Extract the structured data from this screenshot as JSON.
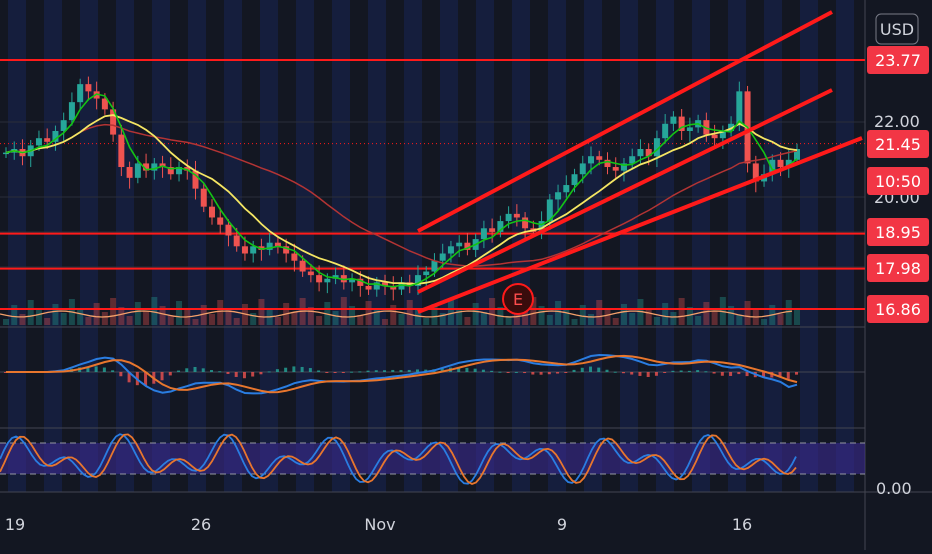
{
  "toolbar": {
    "currency_label": "USD"
  },
  "chart_data": {
    "type": "candlestick",
    "x_axis": {
      "tick_labels": [
        "19",
        "26",
        "Nov",
        "9",
        "16"
      ]
    },
    "price_axis": {
      "tick_labels": [
        "22.00",
        "20.00"
      ],
      "highlighted_levels": [
        {
          "label": "23.77",
          "color": "#f23645"
        },
        {
          "label": "21.45",
          "color": "#f23645"
        },
        {
          "label": "10:50",
          "color": "#f23645"
        },
        {
          "label": "18.95",
          "color": "#f23645"
        },
        {
          "label": "17.98",
          "color": "#f23645"
        },
        {
          "label": "16.86",
          "color": "#f23645"
        }
      ]
    },
    "horizontal_lines": [
      23.77,
      18.95,
      17.98,
      16.86
    ],
    "earnings_marker": "E",
    "lower_pane_tick": "0.00",
    "candles": {
      "start_close": 21.2,
      "closes": [
        21.2,
        21.3,
        21.1,
        21.4,
        21.6,
        21.5,
        21.8,
        22.1,
        22.6,
        23.1,
        22.9,
        22.7,
        22.4,
        21.7,
        20.8,
        20.5,
        20.9,
        20.7,
        20.9,
        20.8,
        20.6,
        20.8,
        20.7,
        20.2,
        19.7,
        19.4,
        19.2,
        18.9,
        18.6,
        18.4,
        18.6,
        18.5,
        18.7,
        18.6,
        18.4,
        18.2,
        17.9,
        17.8,
        17.6,
        17.7,
        17.8,
        17.6,
        17.7,
        17.5,
        17.4,
        17.6,
        17.5,
        17.4,
        17.6,
        17.5,
        17.8,
        17.9,
        18.2,
        18.4,
        18.6,
        18.7,
        18.5,
        18.8,
        19.1,
        19.0,
        19.3,
        19.5,
        19.4,
        19.1,
        19.0,
        19.3,
        19.9,
        20.1,
        20.3,
        20.6,
        20.9,
        21.1,
        21.0,
        20.8,
        20.7,
        20.9,
        21.1,
        21.3,
        21.1,
        21.6,
        22.0,
        22.2,
        21.8,
        21.9,
        22.1,
        21.7,
        21.6,
        21.8,
        22.0,
        22.9,
        20.9,
        20.4,
        20.6,
        21.0,
        20.8,
        21.0,
        21.3
      ]
    },
    "colors": {
      "up": "#26a69a",
      "down": "#ef5350",
      "sma_fast": "#14c414",
      "sma_slow": "#f5e663",
      "sma_long": "#b33434",
      "macd": "#2a7de1",
      "signal": "#e8762d",
      "channel": "#ff1a1a"
    }
  }
}
